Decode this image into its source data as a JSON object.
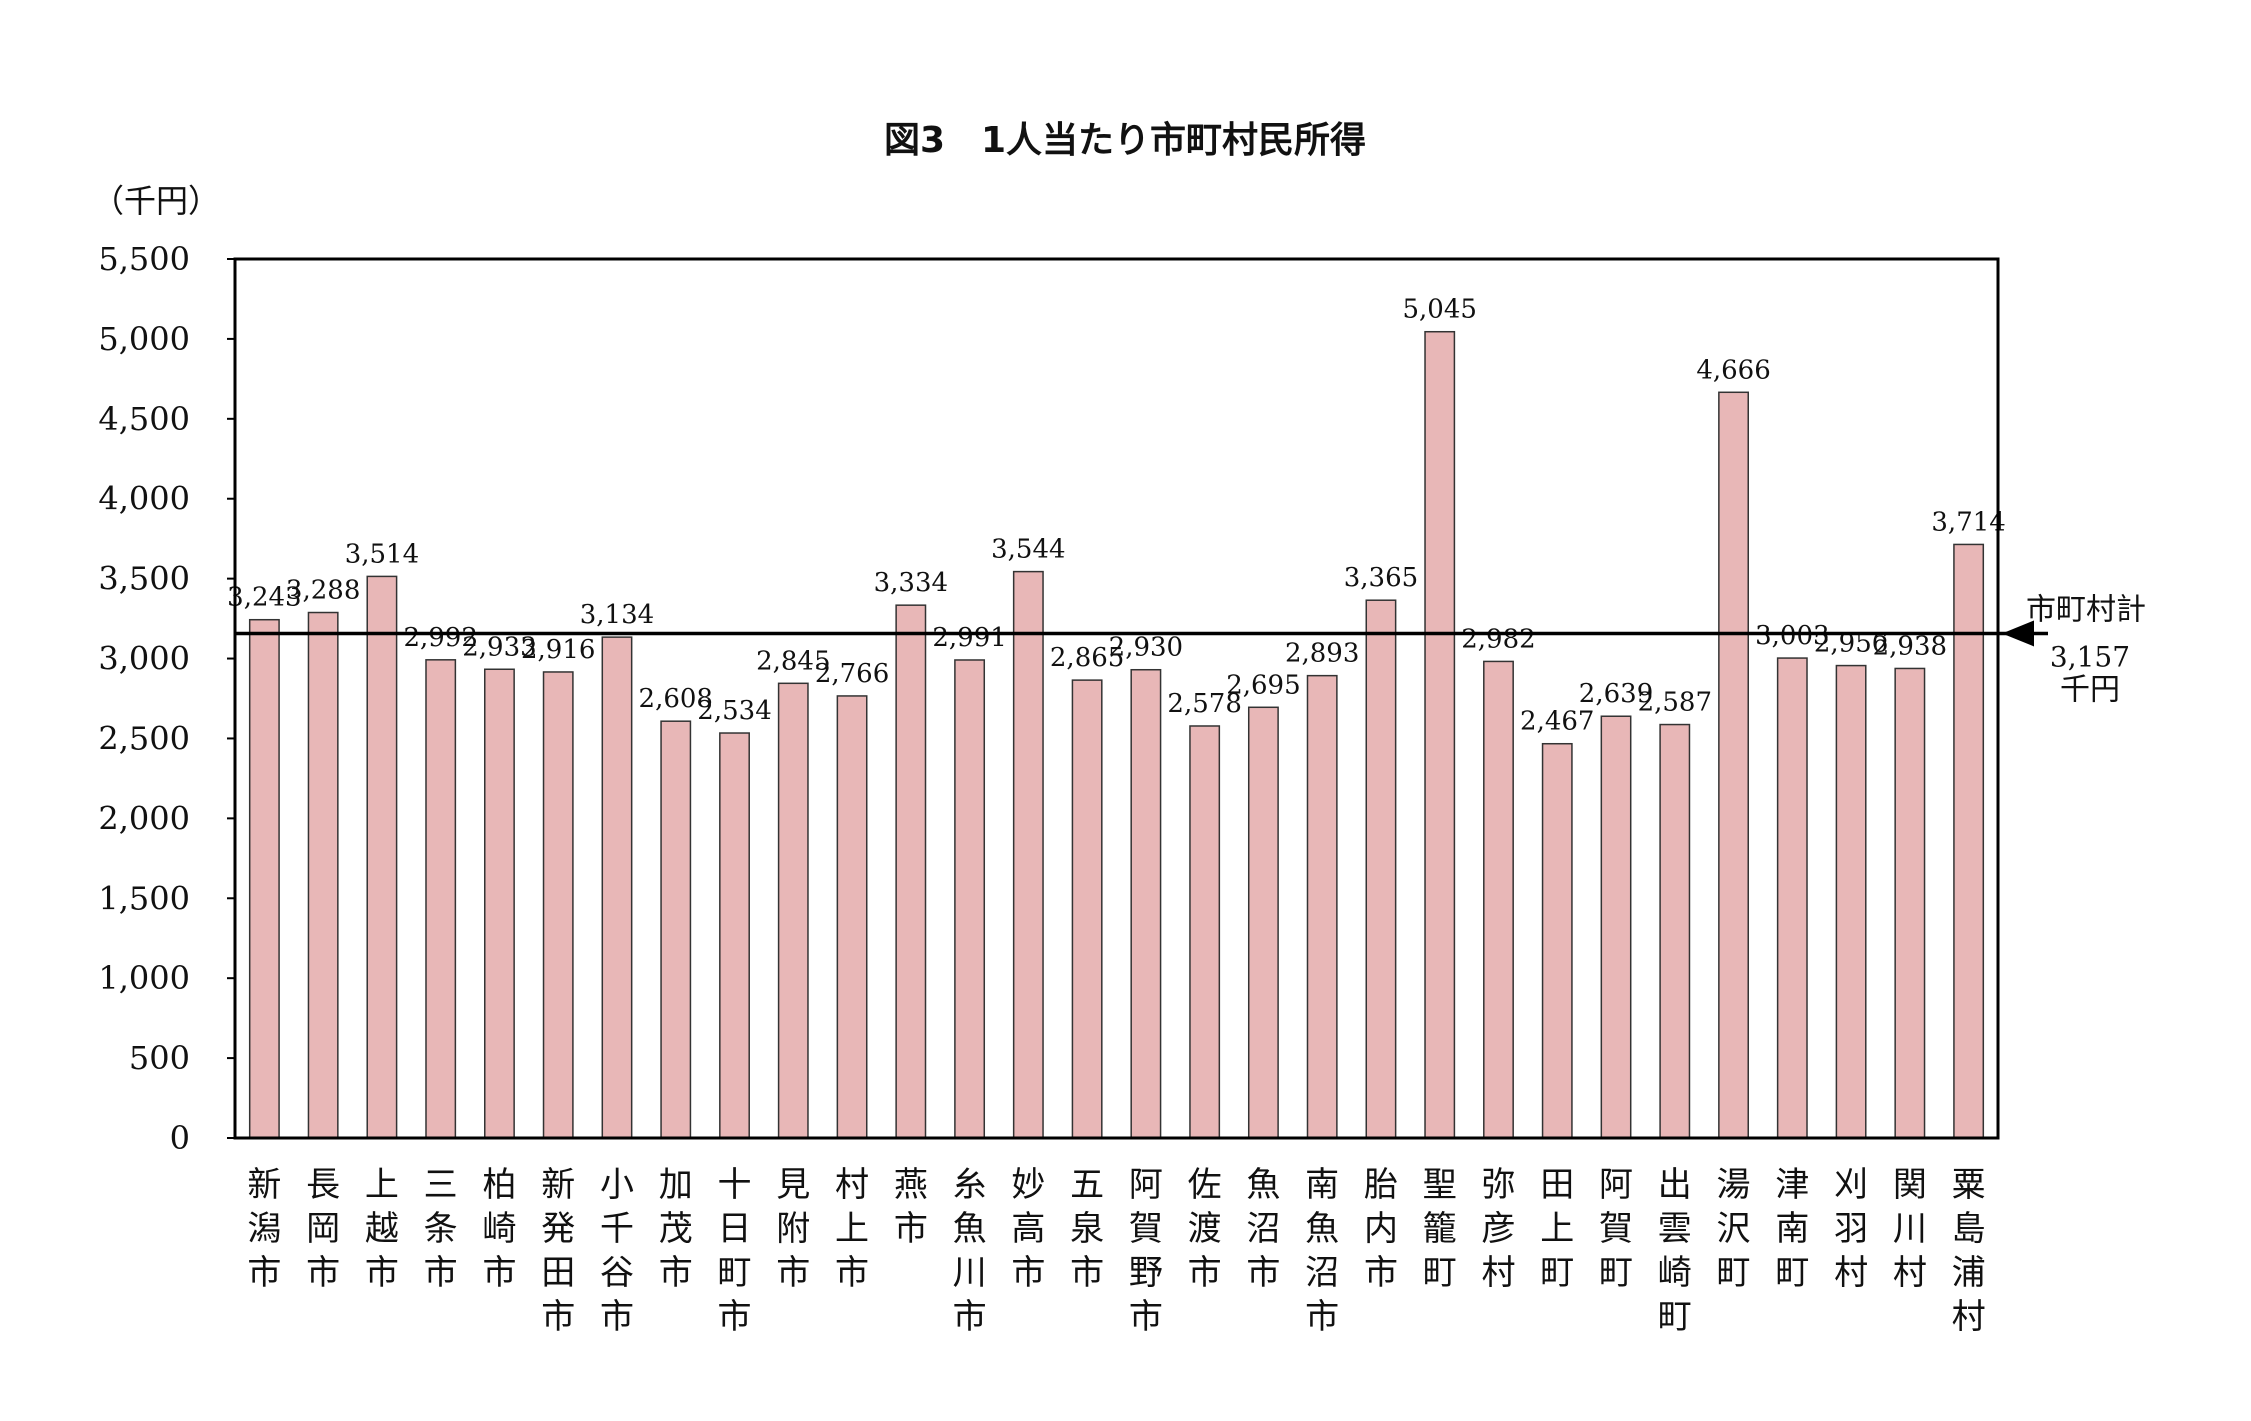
{
  "chart_data": {
    "type": "bar",
    "title": "図3　1人当たり市町村民所得",
    "ylabel": "（千円）",
    "xlabel": "",
    "ylim": [
      0,
      5500
    ],
    "yticks": [
      0,
      500,
      1000,
      1500,
      2000,
      2500,
      3000,
      3500,
      4000,
      4500,
      5000,
      5500
    ],
    "ytick_labels": [
      "0",
      "500",
      "1,000",
      "1,500",
      "2,000",
      "2,500",
      "3,000",
      "3,500",
      "4,000",
      "4,500",
      "5,000",
      "5,500"
    ],
    "grid": false,
    "legend": "none",
    "categories": [
      "新潟市",
      "長岡市",
      "上越市",
      "三条市",
      "柏崎市",
      "新発田市",
      "小千谷市",
      "加茂市",
      "十日町市",
      "見附市",
      "村上市",
      "燕市",
      "糸魚川市",
      "妙高市",
      "五泉市",
      "阿賀野市",
      "佐渡市",
      "魚沼市",
      "南魚沼市",
      "胎内市",
      "聖籠町",
      "弥彦村",
      "田上町",
      "阿賀町",
      "出雲崎町",
      "湯沢町",
      "津南町",
      "刈羽村",
      "関川村",
      "粟島浦村"
    ],
    "values": [
      3243,
      3288,
      3514,
      2992,
      2933,
      2916,
      3134,
      2608,
      2534,
      2845,
      2766,
      3334,
      2991,
      3544,
      2865,
      2930,
      2578,
      2695,
      2893,
      3365,
      5045,
      2982,
      2467,
      2639,
      2587,
      4666,
      3003,
      2956,
      2938,
      3714
    ],
    "value_labels": [
      "3,243",
      "3,288",
      "3,514",
      "2,992",
      "2,933",
      "2,916",
      "3,134",
      "2,608",
      "2,534",
      "2,845",
      "2,766",
      "3,334",
      "2,991",
      "3,544",
      "2,865",
      "2,930",
      "2,578",
      "2,695",
      "2,893",
      "3,365",
      "5,045",
      "2,982",
      "2,467",
      "2,639",
      "2,587",
      "4,666",
      "3,003",
      "2,956",
      "2,938",
      "3,714"
    ],
    "reference_line": {
      "value": 3157,
      "label_line1": "市町村計",
      "label_line2": "3,157",
      "label_line3": "千円"
    },
    "colors": {
      "bar_fill": "#e8b7b7",
      "bar_stroke": "#333333",
      "axis": "#000000"
    }
  }
}
